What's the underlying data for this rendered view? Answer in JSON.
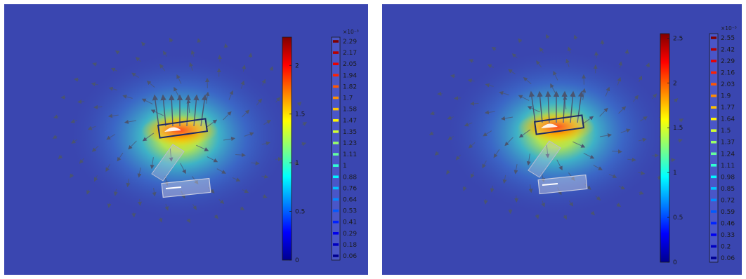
{
  "panels": [
    {
      "id": "left",
      "colorbar": {
        "min": 0,
        "max": 2.29,
        "ticks": [
          "0",
          "0.5",
          "1",
          "1.5",
          "2"
        ]
      },
      "legend": {
        "exponent": "×10⁻³",
        "levels": [
          "2.29",
          "2.17",
          "2.05",
          "1.94",
          "1.82",
          "1.7",
          "1.58",
          "1.47",
          "1.35",
          "1.23",
          "1.11",
          "1",
          "0.88",
          "0.76",
          "0.64",
          "0.53",
          "0.41",
          "0.29",
          "0.18",
          "0.06"
        ]
      }
    },
    {
      "id": "right",
      "colorbar": {
        "min": 0,
        "max": 2.55,
        "ticks": [
          "0",
          "0.5",
          "1",
          "1.5",
          "2",
          "2.5"
        ]
      },
      "legend": {
        "exponent": "×10⁻³",
        "levels": [
          "2.55",
          "2.42",
          "2.29",
          "2.16",
          "2.03",
          "1.9",
          "1.77",
          "1.64",
          "1.5",
          "1.37",
          "1.24",
          "1.11",
          "0.98",
          "0.85",
          "0.72",
          "0.59",
          "0.46",
          "0.33",
          "0.2",
          "0.06"
        ]
      }
    }
  ],
  "colors": {
    "background": "#3a46b0",
    "jet": [
      "#00008f",
      "#0000ff",
      "#0080ff",
      "#00ffff",
      "#80ff80",
      "#ffff00",
      "#ff8000",
      "#ff0000",
      "#800000"
    ]
  }
}
